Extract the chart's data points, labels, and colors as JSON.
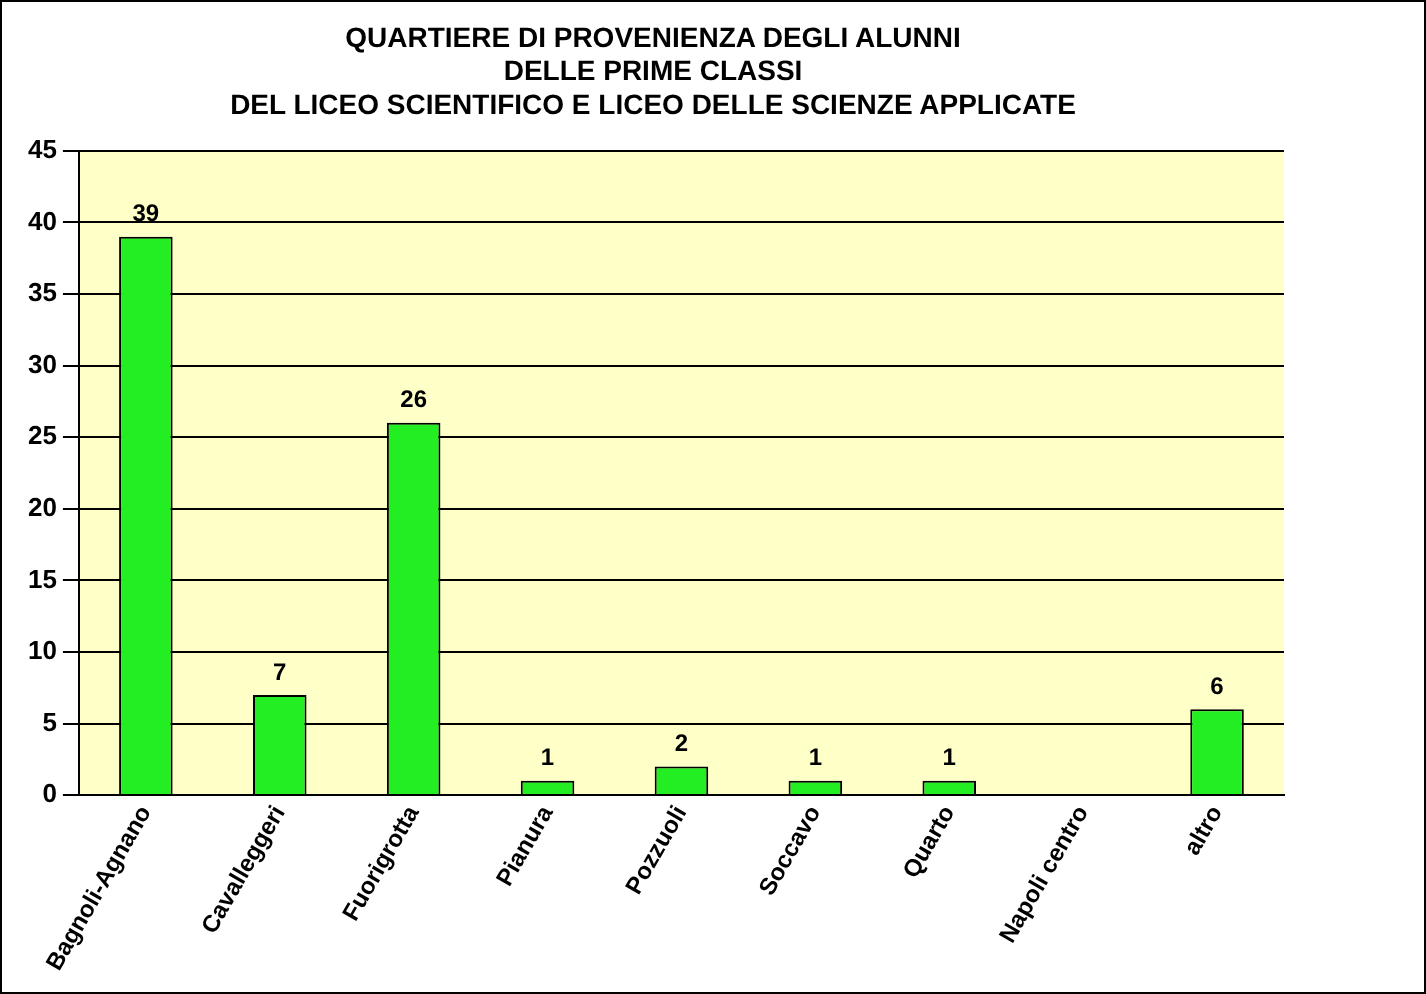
{
  "chart_data": {
    "type": "bar",
    "title": "QUARTIERE DI PROVENIENZA DEGLI ALUNNI\nDELLE PRIME CLASSI\nDEL LICEO SCIENTIFICO E LICEO DELLE SCIENZE APPLICATE",
    "categories": [
      "Bagnoli-Agnano",
      "Cavalleggeri",
      "Fuorigrotta",
      "Pianura",
      "Pozzuoli",
      "Soccavo",
      "Quarto",
      "Napoli centro",
      "altro"
    ],
    "values": [
      39,
      7,
      26,
      1,
      2,
      1,
      1,
      0,
      6
    ],
    "value_labels": [
      "39",
      "7",
      "26",
      "1",
      "2",
      "1",
      "1",
      null,
      "6"
    ],
    "color": "#22ee22",
    "ylim": [
      0,
      45
    ],
    "yticks": [
      0,
      5,
      10,
      15,
      20,
      25,
      30,
      35,
      40,
      45
    ],
    "grid": "y",
    "legend": false
  }
}
